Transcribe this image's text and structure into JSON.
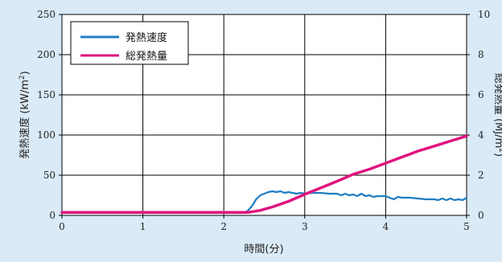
{
  "chart_data": {
    "type": "line",
    "xlabel": "時間(分)",
    "ylabel_left": {
      "text": "発熱速度 (kW/m",
      "sup": "2",
      "close": ")"
    },
    "ylabel_right": {
      "text": "総発熱量 (MJ/m",
      "sup": "2",
      "close": ")"
    },
    "xlim": [
      0,
      5
    ],
    "ylim_left": [
      0,
      250
    ],
    "ylim_right": [
      0,
      10
    ],
    "x_ticks": [
      "0",
      "1",
      "2",
      "3",
      "4",
      "5"
    ],
    "y_ticks_left": [
      "0",
      "50",
      "100",
      "150",
      "200",
      "250"
    ],
    "y_ticks_right": [
      "0",
      "2",
      "4",
      "6",
      "8",
      "10"
    ],
    "grid": true,
    "legend_position": "top-left",
    "series": [
      {
        "name": "発熱速度",
        "axis": "left",
        "color": "#1f7dc0",
        "points": [
          [
            0,
            3
          ],
          [
            2.0,
            3
          ],
          [
            2.25,
            3
          ],
          [
            2.3,
            6
          ],
          [
            2.35,
            12
          ],
          [
            2.4,
            20
          ],
          [
            2.45,
            25
          ],
          [
            2.5,
            27
          ],
          [
            2.55,
            29
          ],
          [
            2.6,
            30
          ],
          [
            2.65,
            29
          ],
          [
            2.7,
            30
          ],
          [
            2.75,
            28
          ],
          [
            2.8,
            29
          ],
          [
            2.85,
            28
          ],
          [
            2.9,
            27
          ],
          [
            2.95,
            28
          ],
          [
            3.0,
            27
          ],
          [
            3.1,
            28
          ],
          [
            3.2,
            28
          ],
          [
            3.3,
            27
          ],
          [
            3.4,
            27
          ],
          [
            3.45,
            25
          ],
          [
            3.5,
            27
          ],
          [
            3.55,
            25
          ],
          [
            3.6,
            26
          ],
          [
            3.65,
            24
          ],
          [
            3.7,
            27
          ],
          [
            3.75,
            24
          ],
          [
            3.8,
            25
          ],
          [
            3.85,
            23
          ],
          [
            3.9,
            24
          ],
          [
            4.0,
            24
          ],
          [
            4.05,
            22
          ],
          [
            4.1,
            20
          ],
          [
            4.15,
            23
          ],
          [
            4.2,
            22
          ],
          [
            4.3,
            22
          ],
          [
            4.4,
            21
          ],
          [
            4.5,
            20
          ],
          [
            4.6,
            20
          ],
          [
            4.65,
            19
          ],
          [
            4.7,
            21
          ],
          [
            4.75,
            19
          ],
          [
            4.8,
            21
          ],
          [
            4.85,
            19
          ],
          [
            4.9,
            20
          ],
          [
            4.95,
            19
          ],
          [
            5.0,
            22
          ]
        ]
      },
      {
        "name": "総発熱量",
        "axis": "right",
        "color": "#e0137f",
        "points": [
          [
            0,
            0.15
          ],
          [
            2.0,
            0.15
          ],
          [
            2.3,
            0.15
          ],
          [
            2.45,
            0.25
          ],
          [
            2.6,
            0.42
          ],
          [
            2.8,
            0.7
          ],
          [
            3.0,
            1.05
          ],
          [
            3.2,
            1.37
          ],
          [
            3.4,
            1.7
          ],
          [
            3.6,
            2.05
          ],
          [
            3.8,
            2.3
          ],
          [
            4.0,
            2.6
          ],
          [
            4.2,
            2.9
          ],
          [
            4.4,
            3.2
          ],
          [
            4.6,
            3.45
          ],
          [
            4.8,
            3.7
          ],
          [
            5.0,
            3.95
          ]
        ]
      }
    ]
  }
}
